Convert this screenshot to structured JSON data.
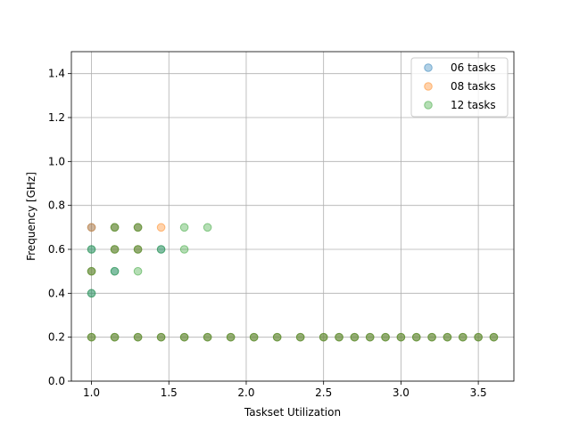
{
  "chart_data": {
    "type": "scatter",
    "title": "",
    "xlabel": "Taskset Utilization",
    "ylabel": "Frequency [GHz]",
    "xlim": [
      0.87,
      3.73
    ],
    "ylim": [
      0.0,
      1.5
    ],
    "x_ticks": [
      1.0,
      1.5,
      2.0,
      2.5,
      3.0,
      3.5
    ],
    "x_tick_labels": [
      "1.0",
      "1.5",
      "2.0",
      "2.5",
      "3.0",
      "3.5"
    ],
    "y_ticks": [
      0.0,
      0.2,
      0.4,
      0.6,
      0.8,
      1.0,
      1.2,
      1.4
    ],
    "y_tick_labels": [
      "0.0",
      "0.2",
      "0.4",
      "0.6",
      "0.8",
      "1.0",
      "1.2",
      "1.4"
    ],
    "grid": true,
    "legend_position": "top-right",
    "series": [
      {
        "name": "06 tasks",
        "color": "#1f77b4",
        "points": [
          [
            1.0,
            0.2
          ],
          [
            1.0,
            0.4
          ],
          [
            1.0,
            0.5
          ],
          [
            1.0,
            0.6
          ],
          [
            1.0,
            0.7
          ],
          [
            1.15,
            0.2
          ],
          [
            1.15,
            0.5
          ],
          [
            1.15,
            0.6
          ],
          [
            1.15,
            0.7
          ],
          [
            1.3,
            0.2
          ],
          [
            1.3,
            0.6
          ],
          [
            1.3,
            0.7
          ],
          [
            1.45,
            0.2
          ],
          [
            1.45,
            0.6
          ],
          [
            1.6,
            0.2
          ],
          [
            1.75,
            0.2
          ],
          [
            1.9,
            0.2
          ],
          [
            2.05,
            0.2
          ],
          [
            2.2,
            0.2
          ],
          [
            2.35,
            0.2
          ],
          [
            2.5,
            0.2
          ],
          [
            2.6,
            0.2
          ],
          [
            2.7,
            0.2
          ],
          [
            2.8,
            0.2
          ],
          [
            2.9,
            0.2
          ],
          [
            3.0,
            0.2
          ],
          [
            3.1,
            0.2
          ],
          [
            3.2,
            0.2
          ],
          [
            3.3,
            0.2
          ],
          [
            3.4,
            0.2
          ],
          [
            3.5,
            0.2
          ],
          [
            3.6,
            0.2
          ]
        ]
      },
      {
        "name": "08 tasks",
        "color": "#ff7f0e",
        "points": [
          [
            1.0,
            0.2
          ],
          [
            1.0,
            0.5
          ],
          [
            1.0,
            0.7
          ],
          [
            1.15,
            0.2
          ],
          [
            1.15,
            0.6
          ],
          [
            1.15,
            0.7
          ],
          [
            1.3,
            0.2
          ],
          [
            1.3,
            0.6
          ],
          [
            1.3,
            0.7
          ],
          [
            1.45,
            0.2
          ],
          [
            1.45,
            0.7
          ],
          [
            1.6,
            0.2
          ],
          [
            1.75,
            0.2
          ],
          [
            1.9,
            0.2
          ],
          [
            2.05,
            0.2
          ],
          [
            2.2,
            0.2
          ],
          [
            2.35,
            0.2
          ],
          [
            2.5,
            0.2
          ],
          [
            2.6,
            0.2
          ],
          [
            2.7,
            0.2
          ],
          [
            2.8,
            0.2
          ],
          [
            2.9,
            0.2
          ],
          [
            3.0,
            0.2
          ],
          [
            3.1,
            0.2
          ],
          [
            3.2,
            0.2
          ],
          [
            3.3,
            0.2
          ],
          [
            3.4,
            0.2
          ],
          [
            3.5,
            0.2
          ],
          [
            3.6,
            0.2
          ]
        ]
      },
      {
        "name": "12 tasks",
        "color": "#2ca02c",
        "points": [
          [
            1.0,
            0.2
          ],
          [
            1.0,
            0.4
          ],
          [
            1.0,
            0.5
          ],
          [
            1.0,
            0.6
          ],
          [
            1.15,
            0.2
          ],
          [
            1.15,
            0.5
          ],
          [
            1.15,
            0.6
          ],
          [
            1.15,
            0.7
          ],
          [
            1.3,
            0.2
          ],
          [
            1.3,
            0.5
          ],
          [
            1.3,
            0.6
          ],
          [
            1.3,
            0.7
          ],
          [
            1.45,
            0.2
          ],
          [
            1.45,
            0.6
          ],
          [
            1.6,
            0.2
          ],
          [
            1.6,
            0.6
          ],
          [
            1.6,
            0.7
          ],
          [
            1.75,
            0.2
          ],
          [
            1.75,
            0.7
          ],
          [
            1.9,
            0.2
          ],
          [
            2.05,
            0.2
          ],
          [
            2.2,
            0.2
          ],
          [
            2.35,
            0.2
          ],
          [
            2.5,
            0.2
          ],
          [
            2.6,
            0.2
          ],
          [
            2.7,
            0.2
          ],
          [
            2.8,
            0.2
          ],
          [
            2.9,
            0.2
          ],
          [
            3.0,
            0.2
          ],
          [
            3.1,
            0.2
          ],
          [
            3.2,
            0.2
          ],
          [
            3.3,
            0.2
          ],
          [
            3.4,
            0.2
          ],
          [
            3.5,
            0.2
          ],
          [
            3.6,
            0.2
          ]
        ]
      }
    ]
  }
}
